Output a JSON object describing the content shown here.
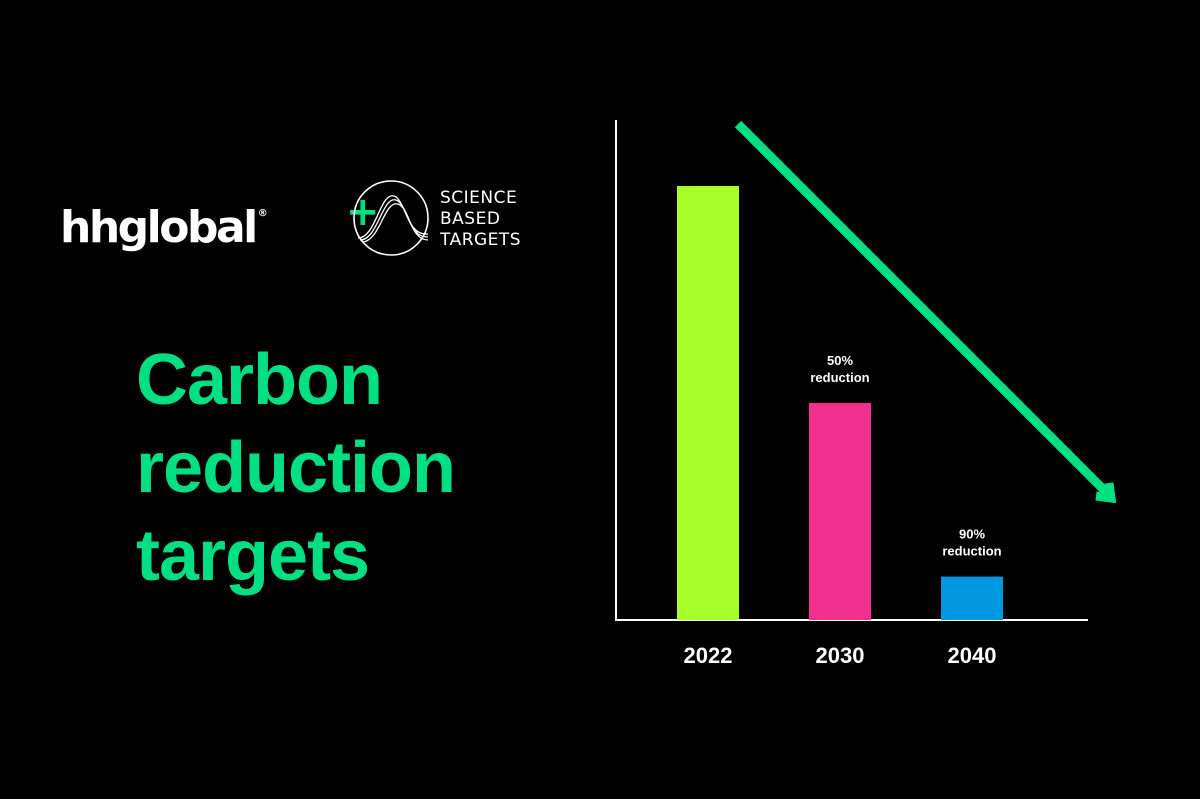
{
  "brand": {
    "logo_text": "hhglobal",
    "registered_mark": "®",
    "plus": "+",
    "partner_lines": [
      "SCIENCE",
      "BASED",
      "TARGETS"
    ]
  },
  "headline": {
    "lines": [
      "Carbon",
      "reduction",
      "targets"
    ],
    "color": "#00E083"
  },
  "colors": {
    "background": "#000000",
    "text": "#FFFFFF",
    "accent_green": "#00E083",
    "trend_arrow": "#00E083"
  },
  "chart_data": {
    "type": "bar",
    "categories": [
      "2022",
      "2030",
      "2040"
    ],
    "values": [
      100,
      50,
      10
    ],
    "bar_colors": [
      "#A6FF2B",
      "#F0308C",
      "#0098E0"
    ],
    "data_labels": [
      [],
      [
        "50%",
        "reduction"
      ],
      [
        "90%",
        "reduction"
      ]
    ],
    "title": "",
    "xlabel": "",
    "ylabel": "",
    "ylim": [
      0,
      115
    ],
    "grid": false,
    "legend": "none",
    "trend_arrow": "down-right"
  }
}
